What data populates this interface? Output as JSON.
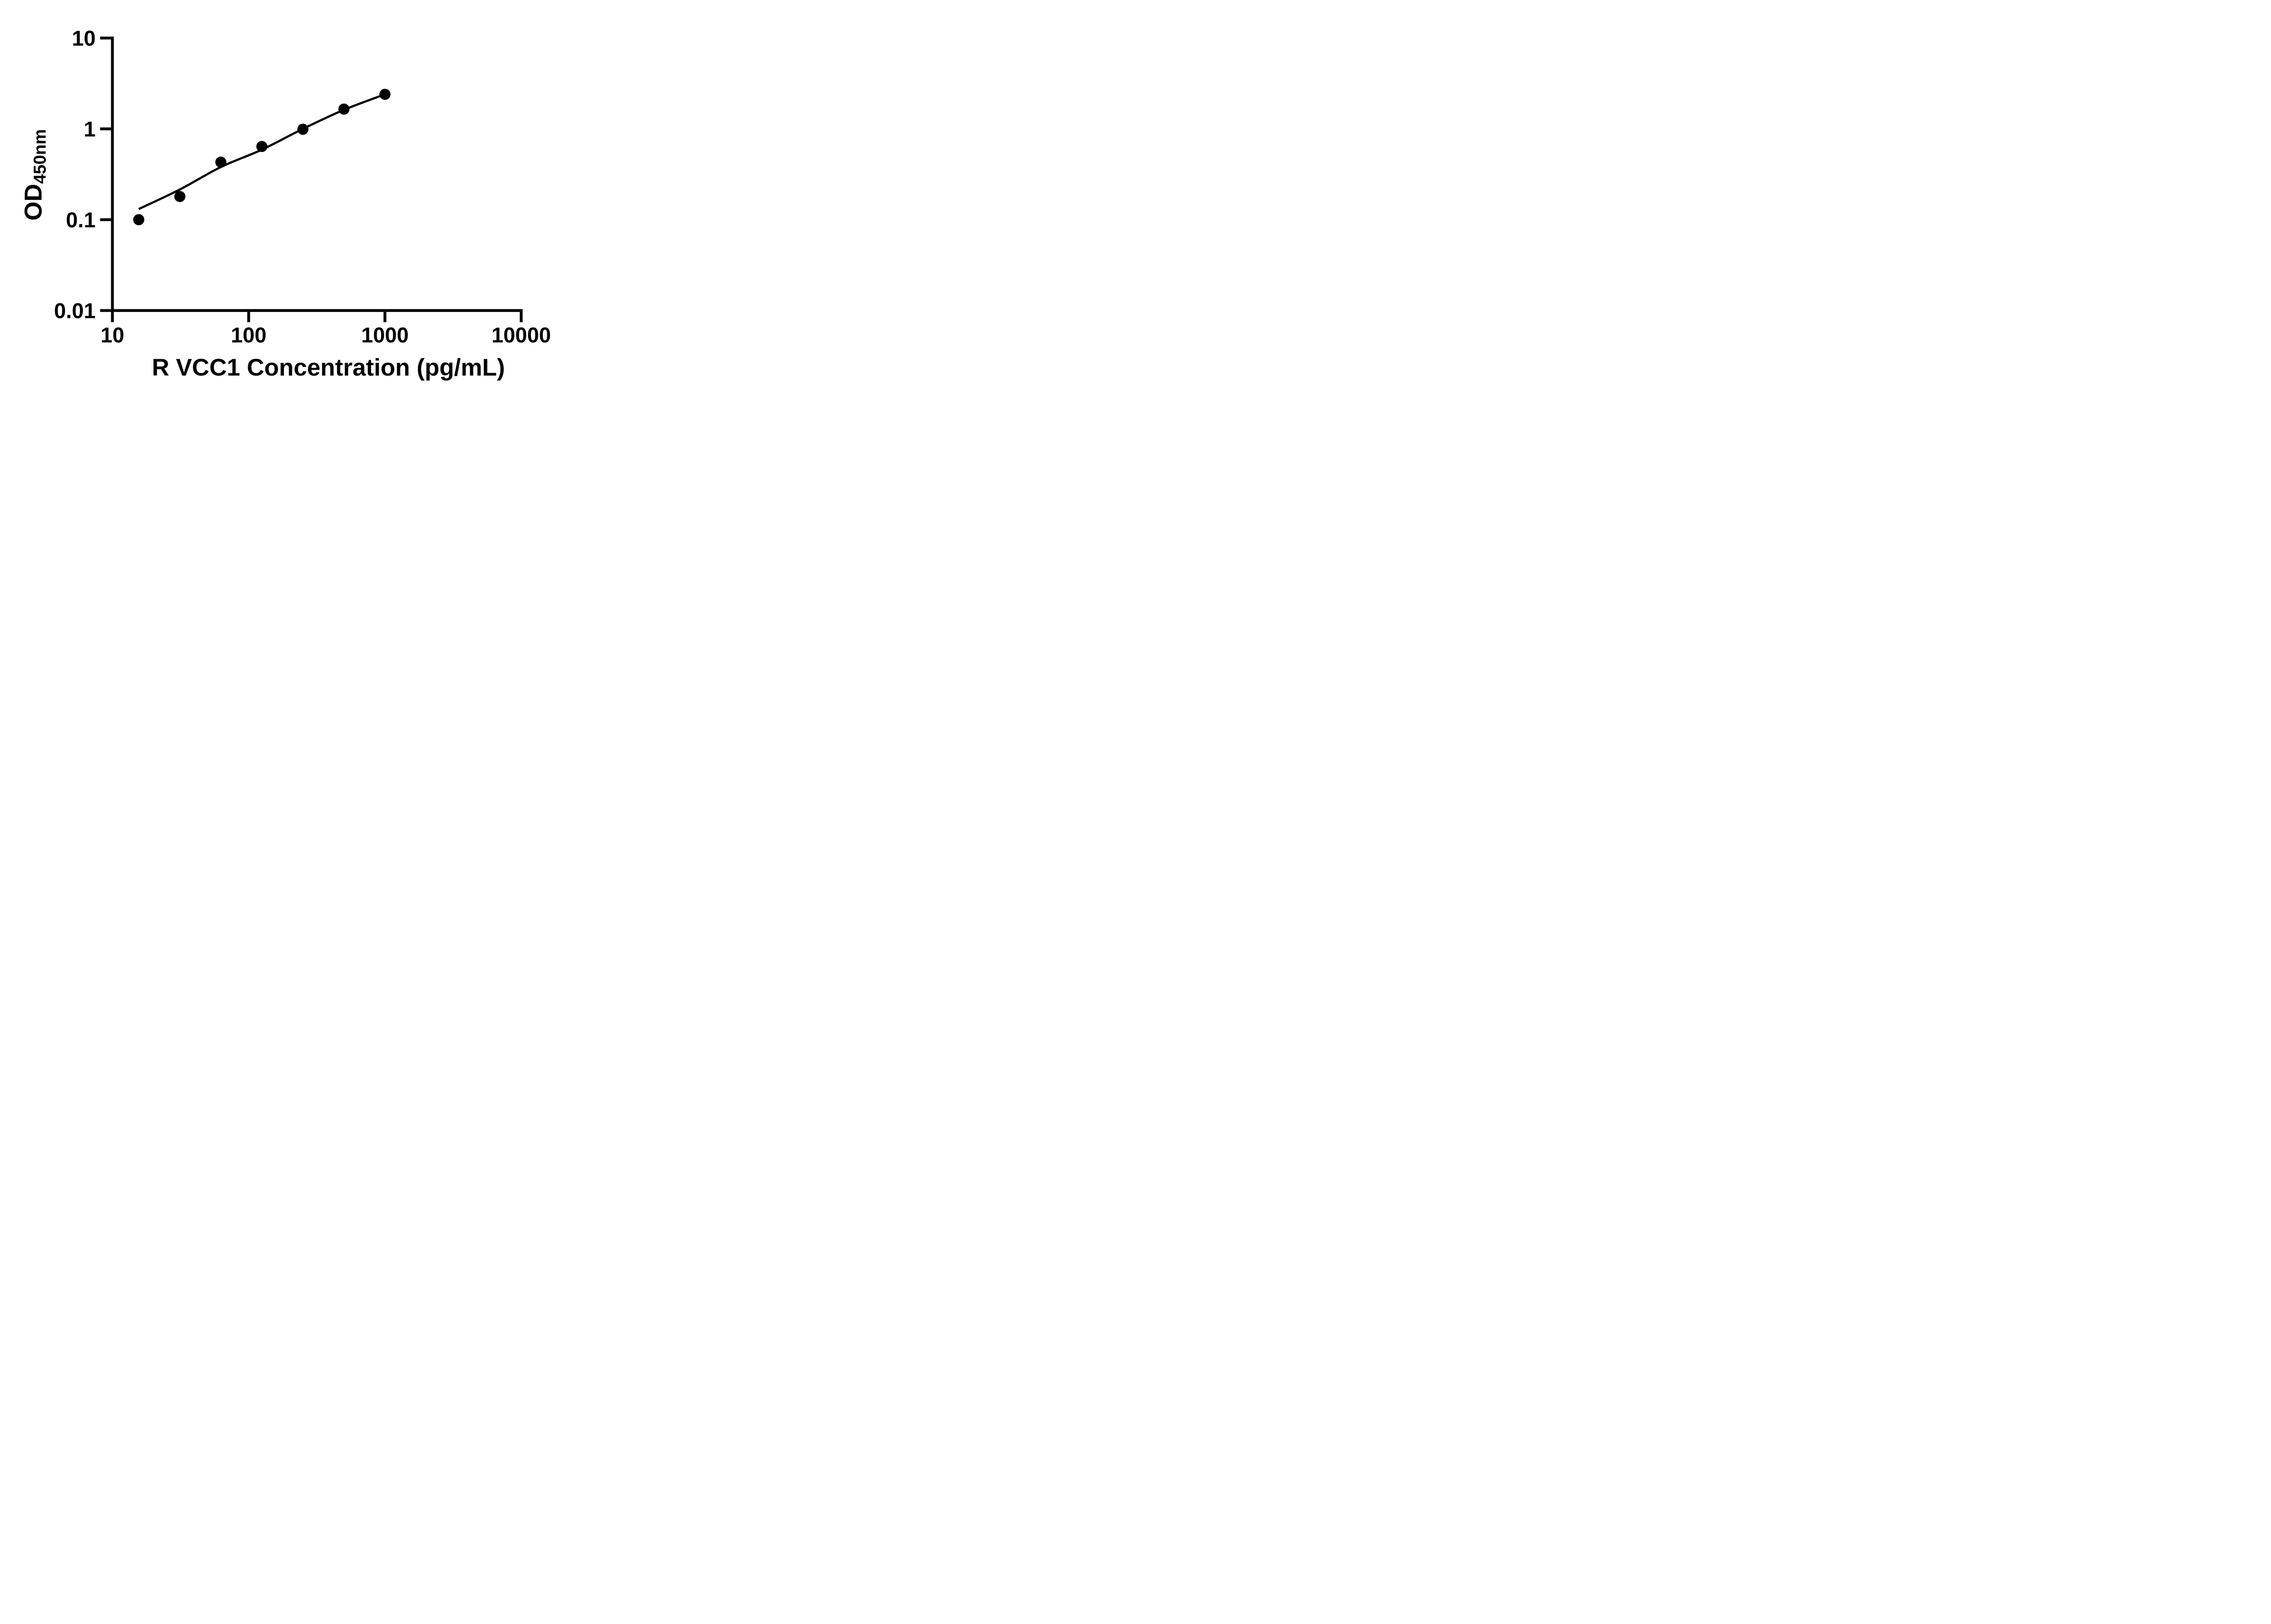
{
  "figure": {
    "background_color": "#ffffff",
    "ink_color": "#000000"
  },
  "chart_data": {
    "type": "scatter",
    "title": "",
    "xlabel": "R VCC1 Concentration (pg/mL)",
    "ylabel_base": "OD",
    "ylabel_subscript": "450nm",
    "x_scale": "log10",
    "y_scale": "log10",
    "x_range": [
      10,
      10000
    ],
    "y_range": [
      0.01,
      10
    ],
    "grid": false,
    "legend": null,
    "x_ticks": [
      {
        "value": 10,
        "label": "10"
      },
      {
        "value": 100,
        "label": "100"
      },
      {
        "value": 1000,
        "label": "1000"
      },
      {
        "value": 10000,
        "label": "10000"
      }
    ],
    "y_ticks": [
      {
        "value": 10,
        "label": "10"
      },
      {
        "value": 1,
        "label": "1"
      },
      {
        "value": 0.1,
        "label": "0.1"
      },
      {
        "value": 0.01,
        "label": "0.01"
      }
    ],
    "series": [
      {
        "name": "standard-points",
        "marker": "filled-circle",
        "color": "#000000",
        "points": [
          {
            "x": 15.6,
            "y": 0.1
          },
          {
            "x": 31.25,
            "y": 0.18
          },
          {
            "x": 62.5,
            "y": 0.43
          },
          {
            "x": 125,
            "y": 0.64
          },
          {
            "x": 250,
            "y": 0.99
          },
          {
            "x": 500,
            "y": 1.65
          },
          {
            "x": 1000,
            "y": 2.4
          }
        ]
      }
    ],
    "fit_curve": {
      "name": "standard-curve-fit-line",
      "color": "#000000",
      "points": [
        {
          "x": 15.6,
          "y": 0.131
        },
        {
          "x": 31.25,
          "y": 0.215
        },
        {
          "x": 62.5,
          "y": 0.38
        },
        {
          "x": 125,
          "y": 0.59
        },
        {
          "x": 250,
          "y": 1.0
        },
        {
          "x": 500,
          "y": 1.62
        },
        {
          "x": 1000,
          "y": 2.4
        }
      ]
    }
  }
}
